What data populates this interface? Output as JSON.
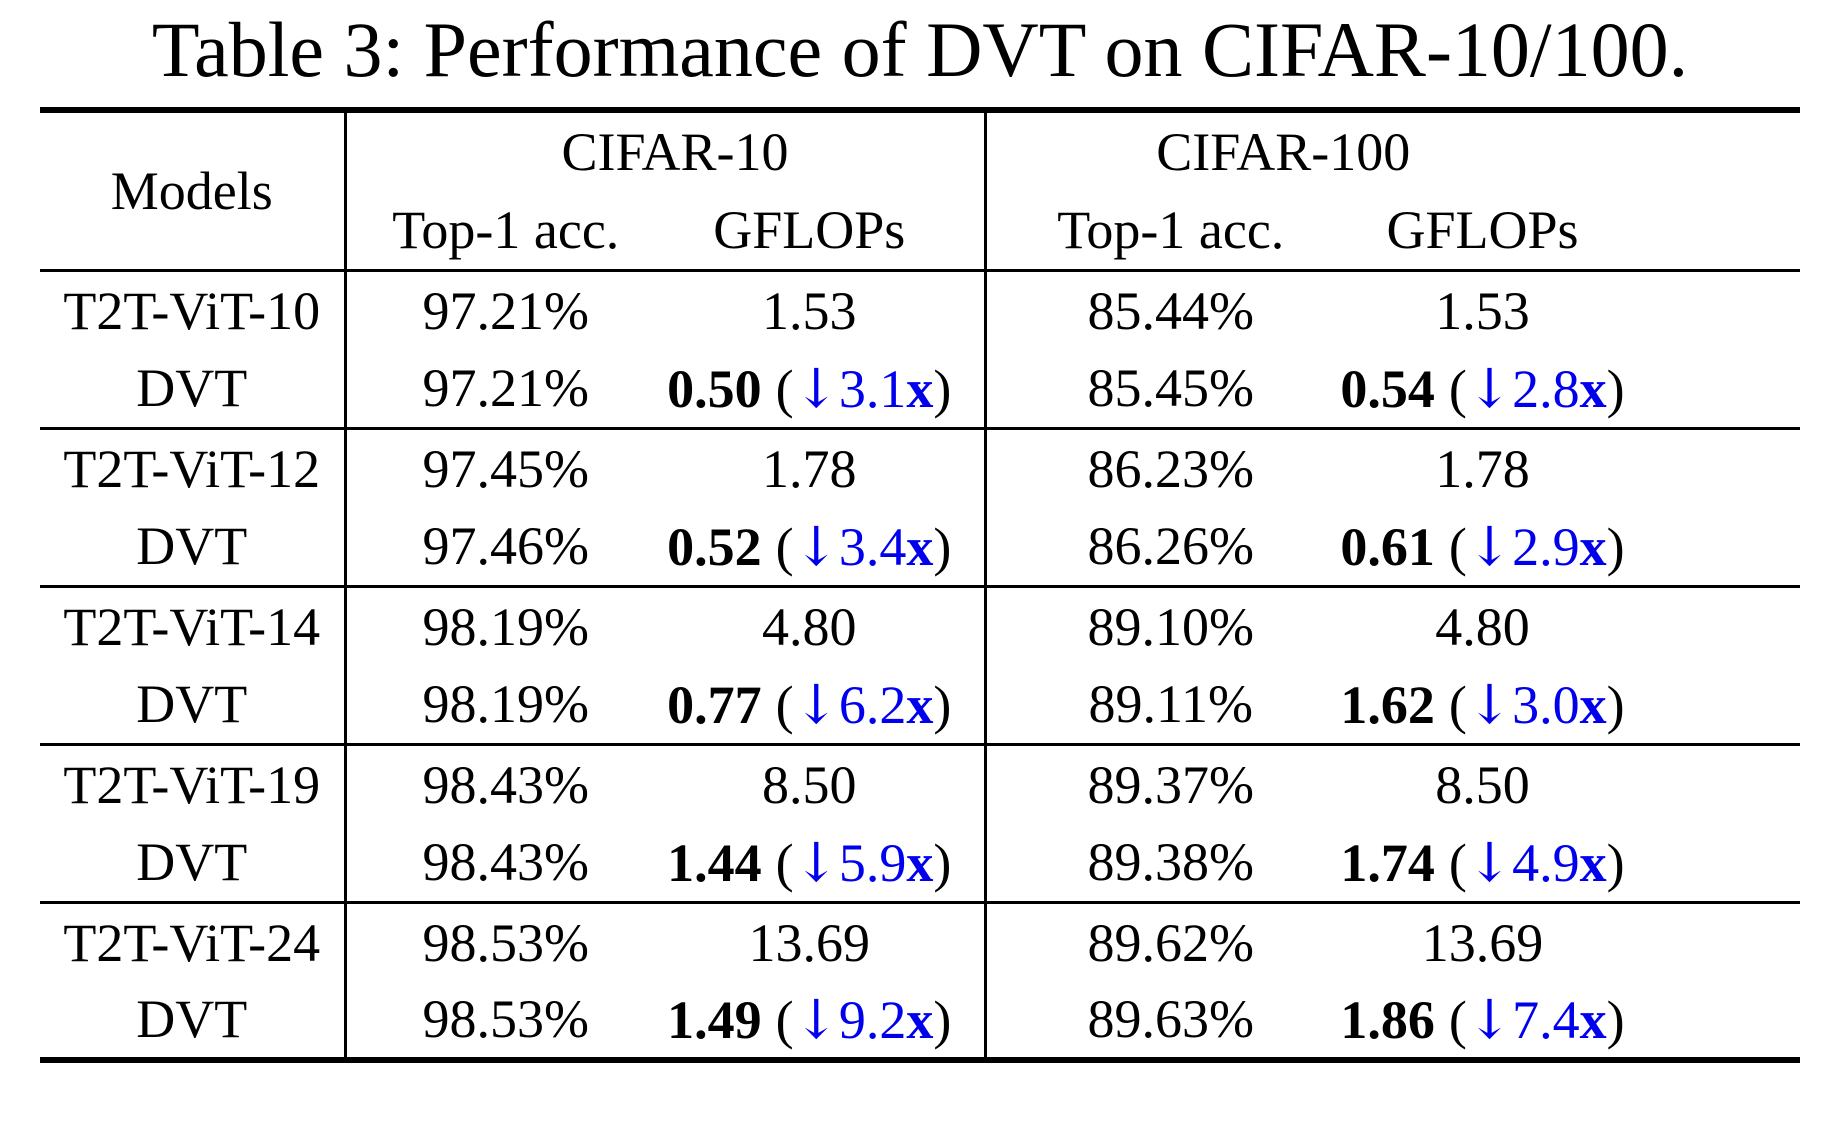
{
  "caption": "Table 3: Performance of DVT on CIFAR-10/100.",
  "colors": {
    "accent_blue": "#0000EE",
    "text_black": "#000000",
    "background": "#FFFFFF"
  },
  "symbols": {
    "down_arrow": "↓",
    "open_paren": "(",
    "close_paren": ")",
    "x_suffix": "x"
  },
  "header": {
    "models_label": "Models",
    "cifar10_label": "CIFAR-10",
    "cifar100_label": "CIFAR-100",
    "top1_label": "Top-1 acc.",
    "gflops_label": "GFLOPs"
  },
  "groups": [
    {
      "base": {
        "model": "T2T-ViT-10",
        "c10_acc": "97.21%",
        "c10_gflops": "1.53",
        "c100_acc": "85.44%",
        "c100_gflops": "1.53"
      },
      "dvt": {
        "model": "DVT",
        "c10_acc": "97.21%",
        "c10_gflops": "0.50",
        "c10_drop": "3.1",
        "c100_acc": "85.45%",
        "c100_gflops": "0.54",
        "c100_drop": "2.8"
      }
    },
    {
      "base": {
        "model": "T2T-ViT-12",
        "c10_acc": "97.45%",
        "c10_gflops": "1.78",
        "c100_acc": "86.23%",
        "c100_gflops": "1.78"
      },
      "dvt": {
        "model": "DVT",
        "c10_acc": "97.46%",
        "c10_gflops": "0.52",
        "c10_drop": "3.4",
        "c100_acc": "86.26%",
        "c100_gflops": "0.61",
        "c100_drop": "2.9"
      }
    },
    {
      "base": {
        "model": "T2T-ViT-14",
        "c10_acc": "98.19%",
        "c10_gflops": "4.80",
        "c100_acc": "89.10%",
        "c100_gflops": "4.80"
      },
      "dvt": {
        "model": "DVT",
        "c10_acc": "98.19%",
        "c10_gflops": "0.77",
        "c10_drop": "6.2",
        "c100_acc": "89.11%",
        "c100_gflops": "1.62",
        "c100_drop": "3.0"
      }
    },
    {
      "base": {
        "model": "T2T-ViT-19",
        "c10_acc": "98.43%",
        "c10_gflops": "8.50",
        "c100_acc": "89.37%",
        "c100_gflops": "8.50"
      },
      "dvt": {
        "model": "DVT",
        "c10_acc": "98.43%",
        "c10_gflops": "1.44",
        "c10_drop": "5.9",
        "c100_acc": "89.38%",
        "c100_gflops": "1.74",
        "c100_drop": "4.9"
      }
    },
    {
      "base": {
        "model": "T2T-ViT-24",
        "c10_acc": "98.53%",
        "c10_gflops": "13.69",
        "c100_acc": "89.62%",
        "c100_gflops": "13.69"
      },
      "dvt": {
        "model": "DVT",
        "c10_acc": "98.53%",
        "c10_gflops": "1.49",
        "c10_drop": "9.2",
        "c100_acc": "89.63%",
        "c100_gflops": "1.86",
        "c100_drop": "7.4"
      }
    }
  ]
}
